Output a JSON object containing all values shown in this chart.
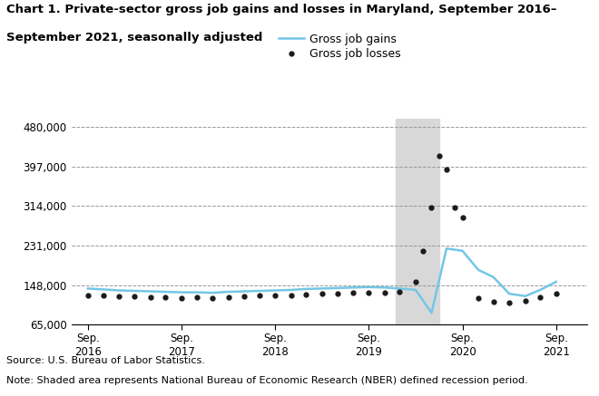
{
  "title_line1": "Chart 1. Private-sector gross job gains and losses in Maryland, September 2016–",
  "title_line2": "September 2021, seasonally adjusted",
  "source": "Source: U.S. Bureau of Labor Statistics.",
  "note": "Note: Shaded area represents National Bureau of Economic Research (NBER) defined recession period.",
  "legend_gains": "Gross job gains",
  "legend_losses": "Gross job losses",
  "recession_start": 2020.04,
  "recession_end": 2020.5,
  "ylim": [
    65000,
    497000
  ],
  "yticks": [
    65000,
    148000,
    231000,
    314000,
    397000,
    480000
  ],
  "ytick_labels": [
    "65,000",
    "148,000",
    "231,000",
    "314,000",
    "397,000",
    "480,000"
  ],
  "xlim_left": 2016.58,
  "xlim_right": 2022.08,
  "xtick_positions": [
    2016.75,
    2017.75,
    2018.75,
    2019.75,
    2020.75,
    2021.75
  ],
  "xtick_labels": [
    "Sep.\n2016",
    "Sep.\n2017",
    "Sep.\n2018",
    "Sep.\n2019",
    "Sep.\n2020",
    "Sep.\n2021"
  ],
  "gains_x": [
    2016.75,
    2016.92,
    2017.08,
    2017.25,
    2017.42,
    2017.58,
    2017.75,
    2017.92,
    2018.08,
    2018.25,
    2018.42,
    2018.58,
    2018.75,
    2018.92,
    2019.08,
    2019.25,
    2019.42,
    2019.58,
    2019.75,
    2019.92,
    2020.08,
    2020.25,
    2020.42,
    2020.58,
    2020.75,
    2020.92,
    2021.08,
    2021.25,
    2021.42,
    2021.58,
    2021.75
  ],
  "gains_y": [
    141000,
    139000,
    137000,
    136000,
    135000,
    134000,
    133000,
    133000,
    132000,
    134000,
    135000,
    136000,
    137000,
    138000,
    140000,
    141000,
    142000,
    143000,
    144000,
    143000,
    141000,
    138000,
    90000,
    225000,
    220000,
    180000,
    165000,
    130000,
    125000,
    138000,
    155000
  ],
  "losses_x": [
    2016.75,
    2016.92,
    2017.08,
    2017.25,
    2017.42,
    2017.58,
    2017.75,
    2017.92,
    2018.08,
    2018.25,
    2018.42,
    2018.58,
    2018.75,
    2018.92,
    2019.08,
    2019.25,
    2019.42,
    2019.58,
    2019.75,
    2019.92,
    2020.08,
    2020.25,
    2020.33,
    2020.42,
    2020.5,
    2020.58,
    2020.67,
    2020.75,
    2020.92,
    2021.08,
    2021.25,
    2021.42,
    2021.58,
    2021.75
  ],
  "losses_y": [
    127000,
    126000,
    125000,
    124000,
    123000,
    122000,
    121000,
    122000,
    121000,
    123000,
    125000,
    126000,
    127000,
    127000,
    128000,
    130000,
    131000,
    132000,
    133000,
    133000,
    135000,
    155000,
    220000,
    310000,
    420000,
    390000,
    310000,
    290000,
    120000,
    113000,
    112000,
    115000,
    123000,
    130000
  ],
  "gains_color": "#73c6e7",
  "losses_color": "#1a1a1a",
  "recession_color": "#d8d8d8",
  "background_color": "#ffffff",
  "grid_color": "#999999"
}
